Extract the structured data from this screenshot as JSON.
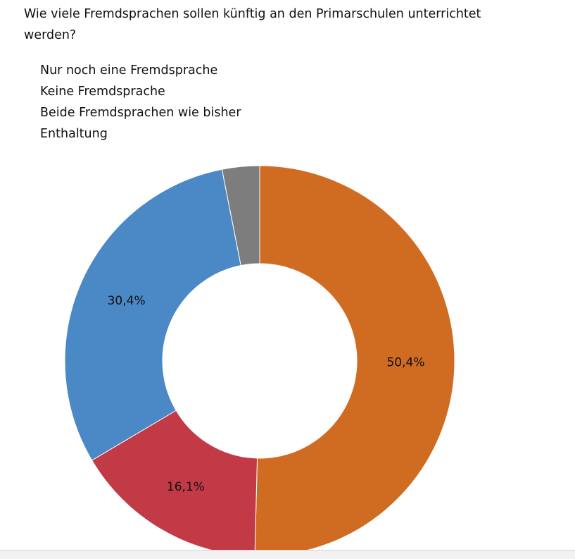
{
  "chart_data": {
    "type": "pie",
    "title": "Wie viele Fremdsprachen sollen künftig an den Primarschulen unterrichtet werden?",
    "donut": true,
    "legend_position": "top-left",
    "categories": [
      "Nur noch eine Fremdsprache",
      "Keine Fremdsprache",
      "Beide Fremdsprachen wie bisher",
      "Enthaltung"
    ],
    "values": [
      50.4,
      16.1,
      30.4,
      3.1
    ],
    "labels": [
      "50,4%",
      "16,1%",
      "30,4%",
      ""
    ],
    "colors": [
      "#d06c22",
      "#c23a46",
      "#4a88c6",
      "#7d7d7d"
    ]
  }
}
